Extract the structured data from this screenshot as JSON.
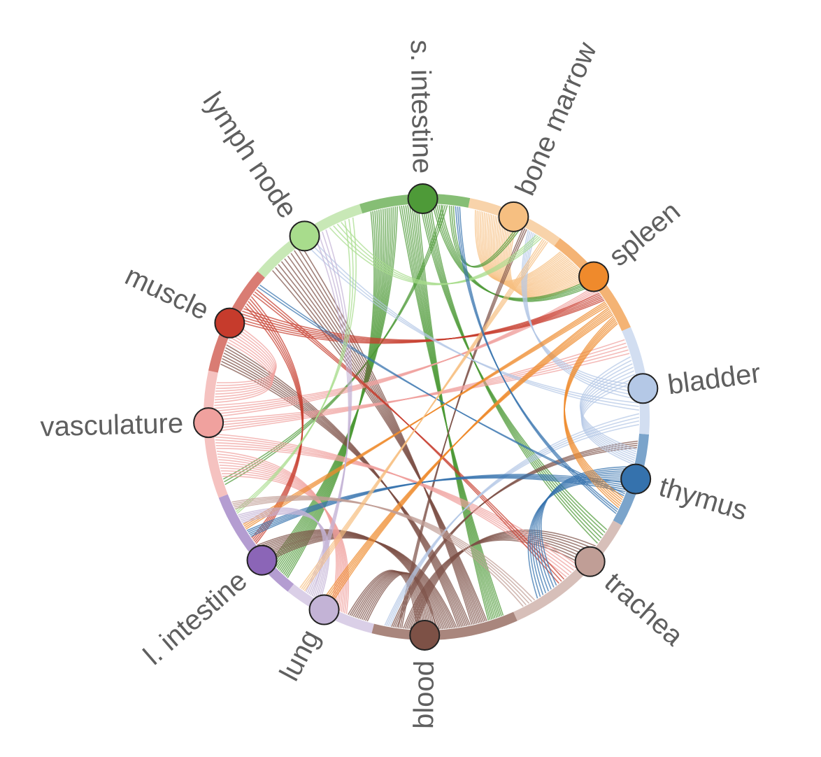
{
  "diagram": {
    "type": "circular-bundle",
    "nodes": [
      {
        "id": "s-intestine",
        "label": "s. intestine",
        "color": "#4e9a38",
        "ring": "#5ea847"
      },
      {
        "id": "bone-marrow",
        "label": "bone marrow",
        "color": "#f6bf81",
        "ring": "#f5c48e"
      },
      {
        "id": "spleen",
        "label": "spleen",
        "color": "#ef8a2c",
        "ring": "#f09a45"
      },
      {
        "id": "bladder",
        "label": "bladder",
        "color": "#b4c8e6",
        "ring": "#c3d3ec"
      },
      {
        "id": "thymus",
        "label": "thymus",
        "color": "#3572ad",
        "ring": "#4f86ba"
      },
      {
        "id": "trachea",
        "label": "trachea",
        "color": "#c09e96",
        "ring": "#c9aaa2"
      },
      {
        "id": "blood",
        "label": "blood",
        "color": "#7d5146",
        "ring": "#8c5e52"
      },
      {
        "id": "lung",
        "label": "lung",
        "color": "#c3b3d6",
        "ring": "#cdbfdf"
      },
      {
        "id": "l-intestine",
        "label": "l. intestine",
        "color": "#8b65b7",
        "ring": "#9b7cc2"
      },
      {
        "id": "vasculature",
        "label": "vasculature",
        "color": "#f0a19e",
        "ring": "#f2aeab"
      },
      {
        "id": "muscle",
        "label": "muscle",
        "color": "#c63b2c",
        "ring": "#cc5044"
      },
      {
        "id": "lymph-node",
        "label": "lymph node",
        "color": "#a8dc8c",
        "ring": "#b5e09e"
      }
    ],
    "links": [
      {
        "source": "bone-marrow",
        "target": "spleen",
        "count": 24
      },
      {
        "source": "s-intestine",
        "target": "l-intestine",
        "count": 14
      },
      {
        "source": "s-intestine",
        "target": "blood",
        "count": 10
      },
      {
        "source": "s-intestine",
        "target": "trachea",
        "count": 6
      },
      {
        "source": "s-intestine",
        "target": "spleen",
        "count": 5
      },
      {
        "source": "s-intestine",
        "target": "vasculature",
        "count": 3
      },
      {
        "source": "s-intestine",
        "target": "bone-marrow",
        "count": 3
      },
      {
        "source": "blood",
        "target": "lymph-node",
        "count": 10
      },
      {
        "source": "blood",
        "target": "muscle",
        "count": 8
      },
      {
        "source": "blood",
        "target": "l-intestine",
        "count": 12
      },
      {
        "source": "blood",
        "target": "lung",
        "count": 12
      },
      {
        "source": "blood",
        "target": "trachea",
        "count": 8
      },
      {
        "source": "blood",
        "target": "bone-marrow",
        "count": 3
      },
      {
        "source": "blood",
        "target": "thymus",
        "count": 4
      },
      {
        "source": "vasculature",
        "target": "lung",
        "count": 10
      },
      {
        "source": "vasculature",
        "target": "trachea",
        "count": 6
      },
      {
        "source": "vasculature",
        "target": "bladder",
        "count": 5
      },
      {
        "source": "vasculature",
        "target": "spleen",
        "count": 5
      },
      {
        "source": "vasculature",
        "target": "muscle",
        "count": 8
      },
      {
        "source": "muscle",
        "target": "spleen",
        "count": 6
      },
      {
        "source": "muscle",
        "target": "l-intestine",
        "count": 5
      },
      {
        "source": "muscle",
        "target": "trachea",
        "count": 3
      },
      {
        "source": "bladder",
        "target": "thymus",
        "count": 8
      },
      {
        "source": "bladder",
        "target": "bone-marrow",
        "count": 5
      },
      {
        "source": "bladder",
        "target": "lymph-node",
        "count": 3
      },
      {
        "source": "bladder",
        "target": "blood",
        "count": 4
      },
      {
        "source": "thymus",
        "target": "trachea",
        "count": 8
      },
      {
        "source": "thymus",
        "target": "l-intestine",
        "count": 5
      },
      {
        "source": "thymus",
        "target": "muscle",
        "count": 2
      },
      {
        "source": "spleen",
        "target": "l-intestine",
        "count": 4
      },
      {
        "source": "spleen",
        "target": "lung",
        "count": 6
      },
      {
        "source": "spleen",
        "target": "thymus",
        "count": 6
      },
      {
        "source": "lung",
        "target": "l-intestine",
        "count": 6
      },
      {
        "source": "lung",
        "target": "lymph-node",
        "count": 4
      },
      {
        "source": "lymph-node",
        "target": "bone-marrow",
        "count": 4
      },
      {
        "source": "lymph-node",
        "target": "l-intestine",
        "count": 3
      },
      {
        "source": "trachea",
        "target": "l-intestine",
        "count": 5
      },
      {
        "source": "bone-marrow",
        "target": "lung",
        "count": 4
      },
      {
        "source": "thymus",
        "target": "s-intestine",
        "count": 3
      }
    ]
  }
}
